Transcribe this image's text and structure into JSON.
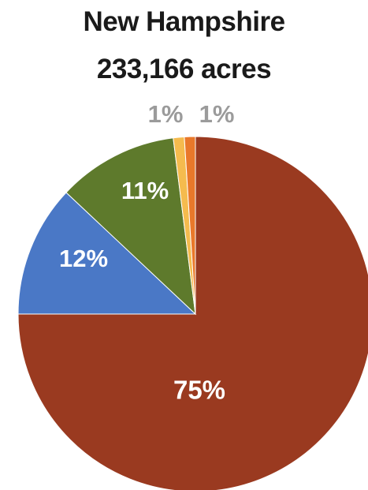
{
  "chart": {
    "title": "New Hampshire",
    "subtitle": "233,166 acres"
  },
  "chart_data": {
    "type": "pie",
    "title": "New Hampshire",
    "subtitle": "233,166 acres",
    "slices": [
      {
        "value": 75,
        "label": "75%",
        "color": "#9a3a20",
        "label_color": "#ffffff"
      },
      {
        "value": 12,
        "label": "12%",
        "color": "#4a78c6",
        "label_color": "#ffffff"
      },
      {
        "value": 11,
        "label": "11%",
        "color": "#5e7a2c",
        "label_color": "#ffffff"
      },
      {
        "value": 1,
        "label": "1%",
        "color": "#f5bb4e",
        "label_color": "#9b9b9b"
      },
      {
        "value": 1,
        "label": "1%",
        "color": "#e9782a",
        "label_color": "#9b9b9b"
      }
    ]
  }
}
